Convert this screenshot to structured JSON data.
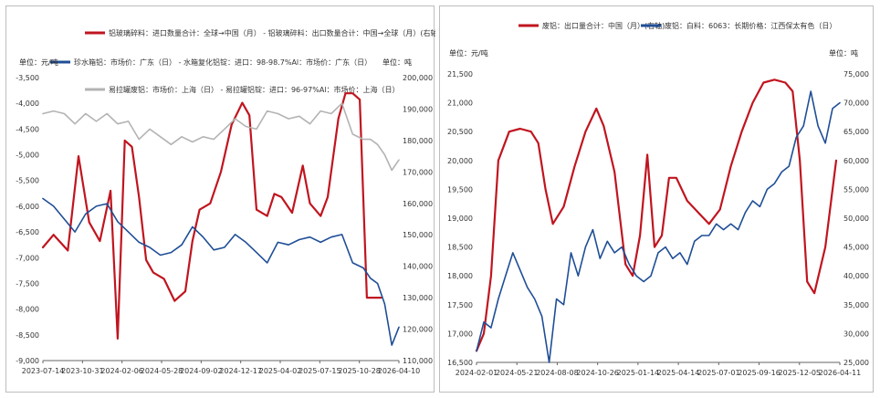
{
  "colors": {
    "red": "#c0151f",
    "blue": "#1f4e96",
    "gray": "#b3b3b3"
  },
  "chart_data": [
    {
      "type": "line",
      "left_unit": "单位：元/吨",
      "right_unit": "单位：吨",
      "x_ticks": [
        "2023-07-14",
        "2023-10-31",
        "2024-02-06",
        "2024-05-28",
        "2024-09-02",
        "2024-12-17",
        "2025-04-02",
        "2025-07-15",
        "2025-10-28",
        "2026-04-10"
      ],
      "ylim_left": [
        -9000,
        -3500
      ],
      "y_ticks_left": [
        "-3,500",
        "-4,000",
        "-4,500",
        "-5,000",
        "-5,500",
        "-6,000",
        "-6,500",
        "-7,000",
        "-7,500",
        "-8,000",
        "-8,500",
        "-9,000"
      ],
      "ylim_right": [
        110000,
        200000
      ],
      "y_ticks_right": [
        "200,000",
        "190,000",
        "180,000",
        "170,000",
        "160,000",
        "150,000",
        "140,000",
        "130,000",
        "120,000",
        "110,000"
      ],
      "legend": [
        "铝玻璃碎料：进口数量合计：全球→中国（月） - 铝玻璃碎料：出口数量合计：中国→全球（月）(右轴)",
        "珍水箱铝：市场价：广东（日） - 水箱复化铝锭：进口：98-98.7%Al：市场价：广东（日）",
        "易拉罐废铝：市场价：上海（日） - 易拉罐铝锭：进口：96-97%Al：市场价：上海（日）"
      ],
      "series": [
        {
          "name": "铝玻璃碎料：进口数量合计：全球→中国（月） - 铝玻璃碎料：出口数量合计：中国→全球（月）(右轴)",
          "axis": "right",
          "color": "red",
          "x": [
            0,
            0.03,
            0.07,
            0.1,
            0.13,
            0.16,
            0.19,
            0.21,
            0.23,
            0.25,
            0.27,
            0.29,
            0.31,
            0.34,
            0.37,
            0.4,
            0.42,
            0.44,
            0.47,
            0.5,
            0.53,
            0.56,
            0.58,
            0.6,
            0.63,
            0.65,
            0.67,
            0.7,
            0.73,
            0.75,
            0.78,
            0.8,
            0.83,
            0.85,
            0.87,
            0.89,
            0.91,
            0.93,
            0.95
          ],
          "y": [
            146000,
            150000,
            145000,
            175000,
            154000,
            148000,
            164000,
            117000,
            180000,
            178000,
            162000,
            142000,
            138000,
            136000,
            129000,
            132000,
            148000,
            158000,
            160000,
            170000,
            185000,
            192000,
            188000,
            158000,
            156000,
            163000,
            162000,
            157000,
            172000,
            160000,
            156000,
            162000,
            187000,
            195000,
            195000,
            193000,
            130000,
            130000,
            130000
          ]
        },
        {
          "name": "珍水箱铝：市场价：广东（日） - 水箱复化铝锭：进口：98-98.7%Al：市场价：广东（日）",
          "axis": "left",
          "color": "blue",
          "x": [
            0,
            0.03,
            0.06,
            0.09,
            0.12,
            0.15,
            0.18,
            0.21,
            0.24,
            0.27,
            0.3,
            0.33,
            0.36,
            0.39,
            0.42,
            0.45,
            0.48,
            0.51,
            0.54,
            0.57,
            0.6,
            0.63,
            0.66,
            0.69,
            0.72,
            0.75,
            0.78,
            0.81,
            0.84,
            0.87,
            0.9,
            0.92,
            0.94,
            0.96,
            0.98,
            1
          ],
          "y": [
            -5850,
            -6000,
            -6250,
            -6500,
            -6150,
            -6000,
            -5950,
            -6300,
            -6500,
            -6700,
            -6800,
            -6950,
            -6900,
            -6750,
            -6400,
            -6600,
            -6850,
            -6800,
            -6550,
            -6700,
            -6900,
            -7100,
            -6700,
            -6750,
            -6650,
            -6600,
            -6700,
            -6600,
            -6550,
            -7100,
            -7200,
            -7400,
            -7500,
            -7900,
            -8700,
            -8350
          ]
        },
        {
          "name": "易拉罐废铝：市场价：上海（日） - 易拉罐铝锭：进口：96-97%Al：市场价：上海（日）",
          "axis": "left",
          "color": "gray",
          "x": [
            0,
            0.03,
            0.06,
            0.09,
            0.12,
            0.15,
            0.18,
            0.21,
            0.24,
            0.27,
            0.3,
            0.33,
            0.36,
            0.39,
            0.42,
            0.45,
            0.48,
            0.51,
            0.54,
            0.57,
            0.6,
            0.63,
            0.66,
            0.69,
            0.72,
            0.75,
            0.78,
            0.81,
            0.84,
            0.87,
            0.9,
            0.92,
            0.94,
            0.96,
            0.98,
            1
          ],
          "y": [
            -4200,
            -4150,
            -4200,
            -4400,
            -4200,
            -4350,
            -4200,
            -4400,
            -4350,
            -4700,
            -4500,
            -4650,
            -4800,
            -4650,
            -4750,
            -4650,
            -4700,
            -4500,
            -4300,
            -4450,
            -4500,
            -4150,
            -4200,
            -4300,
            -4250,
            -4400,
            -4150,
            -4200,
            -4000,
            -4600,
            -4700,
            -4700,
            -4800,
            -5000,
            -5300,
            -5100
          ]
        }
      ]
    },
    {
      "type": "line",
      "left_unit": "单位：元/吨",
      "right_unit": "单位：吨",
      "x_ticks": [
        "2024-02-01",
        "2024-05-21",
        "2024-08-08",
        "2024-10-26",
        "2025-01-14",
        "2025-04-14",
        "2025-07-01",
        "2025-09-16",
        "2025-12-05",
        "2026-04-11"
      ],
      "ylim_left": [
        16500,
        21500
      ],
      "y_ticks_left": [
        "21,500",
        "21,000",
        "20,500",
        "20,000",
        "19,500",
        "19,000",
        "18,500",
        "18,000",
        "17,500",
        "17,000",
        "16,500"
      ],
      "ylim_right": [
        25000,
        75000
      ],
      "y_ticks_right": [
        "75,000",
        "70,000",
        "65,000",
        "60,000",
        "55,000",
        "50,000",
        "45,000",
        "40,000",
        "35,000",
        "30,000",
        "25,000"
      ],
      "legend": [
        "废铝：出口量合计：中国（月）(右轴)",
        "废铝：白料：6063：长期价格：江西保太有色（日）"
      ],
      "series": [
        {
          "name": "废铝：出口量合计：中国（月）(右轴)",
          "axis": "right",
          "color": "red",
          "x": [
            0,
            0.02,
            0.04,
            0.06,
            0.09,
            0.12,
            0.15,
            0.17,
            0.19,
            0.21,
            0.24,
            0.27,
            0.3,
            0.33,
            0.35,
            0.38,
            0.41,
            0.43,
            0.45,
            0.47,
            0.49,
            0.51,
            0.53,
            0.55,
            0.58,
            0.61,
            0.64,
            0.67,
            0.7,
            0.73,
            0.76,
            0.79,
            0.82,
            0.85,
            0.87,
            0.89,
            0.91,
            0.93,
            0.96,
            0.99
          ],
          "y": [
            27000,
            30000,
            40000,
            60000,
            65000,
            65500,
            65000,
            63000,
            55000,
            49000,
            52000,
            59000,
            65000,
            69000,
            66000,
            58000,
            42000,
            40000,
            47000,
            61000,
            45000,
            47000,
            57000,
            57000,
            53000,
            51000,
            49000,
            51500,
            59000,
            65000,
            70000,
            73500,
            74000,
            73500,
            72000,
            60000,
            39000,
            37000,
            45000,
            60000
          ]
        },
        {
          "name": "废铝：白料：6063：长期价格：江西保太有色（日）",
          "axis": "left",
          "color": "blue",
          "x": [
            0,
            0.02,
            0.04,
            0.06,
            0.08,
            0.1,
            0.12,
            0.14,
            0.16,
            0.18,
            0.2,
            0.22,
            0.24,
            0.26,
            0.28,
            0.3,
            0.32,
            0.34,
            0.36,
            0.38,
            0.4,
            0.42,
            0.44,
            0.46,
            0.48,
            0.5,
            0.52,
            0.54,
            0.56,
            0.58,
            0.6,
            0.62,
            0.64,
            0.66,
            0.68,
            0.7,
            0.72,
            0.74,
            0.76,
            0.78,
            0.8,
            0.82,
            0.84,
            0.86,
            0.88,
            0.9,
            0.92,
            0.94,
            0.96,
            0.98,
            1
          ],
          "y": [
            16700,
            17200,
            17100,
            17600,
            18000,
            18400,
            18100,
            17800,
            17600,
            17300,
            16500,
            17600,
            17500,
            18400,
            18000,
            18500,
            18800,
            18300,
            18600,
            18400,
            18500,
            18200,
            18000,
            17900,
            18000,
            18400,
            18500,
            18300,
            18400,
            18200,
            18600,
            18700,
            18700,
            18900,
            18800,
            18900,
            18800,
            19100,
            19300,
            19200,
            19500,
            19600,
            19800,
            19900,
            20400,
            20600,
            21200,
            20600,
            20300,
            20900,
            21000
          ]
        }
      ]
    }
  ]
}
